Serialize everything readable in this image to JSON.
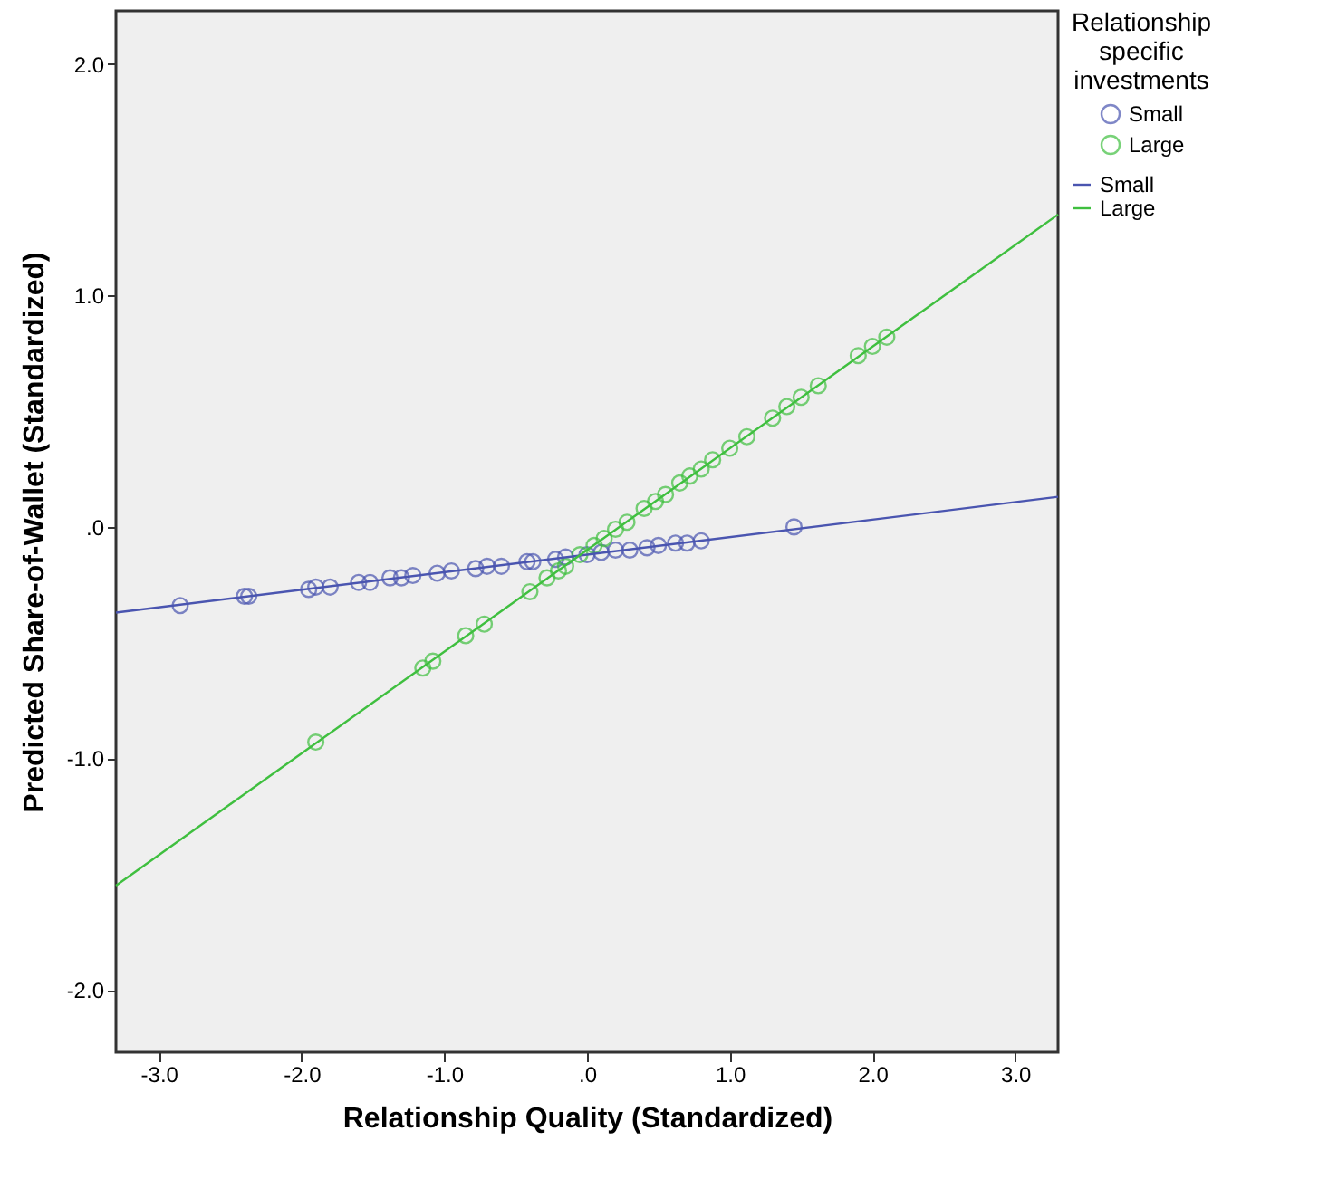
{
  "chart_data": {
    "type": "scatter",
    "xlabel": "Relationship Quality (Standardized)",
    "ylabel": "Predicted Share-of-Wallet (Standardized)",
    "legend_title": "Relationship specific investments",
    "legend": "top right",
    "marker": "circle",
    "grid": false,
    "xlim": [
      -3.3,
      3.3
    ],
    "ylim": [
      -2.27,
      2.23
    ],
    "xticks": [
      {
        "value": -3,
        "label": "-3.0"
      },
      {
        "value": -2,
        "label": "-2.0"
      },
      {
        "value": -1,
        "label": "-1.0"
      },
      {
        "value": 0,
        "label": ".0"
      },
      {
        "value": 1,
        "label": "1.0"
      },
      {
        "value": 2,
        "label": "2.0"
      },
      {
        "value": 3,
        "label": "3.0"
      }
    ],
    "yticks": [
      {
        "value": -2,
        "label": "-2.0"
      },
      {
        "value": -1,
        "label": "-1.0"
      },
      {
        "value": 0,
        "label": ".0"
      },
      {
        "value": 1,
        "label": "1.0"
      },
      {
        "value": 2,
        "label": "2.0"
      }
    ],
    "series": [
      {
        "name": "Small",
        "color": "#4a55b0",
        "x": [
          -2.85,
          -2.4,
          -2.37,
          -1.95,
          -1.9,
          -1.8,
          -1.6,
          -1.52,
          -1.38,
          -1.3,
          -1.22,
          -1.05,
          -0.95,
          -0.78,
          -0.7,
          -0.6,
          -0.42,
          -0.38,
          -0.22,
          -0.15,
          0.0,
          0.1,
          0.2,
          0.3,
          0.42,
          0.5,
          0.62,
          0.7,
          0.8,
          1.45
        ],
        "values": [
          -0.34,
          -0.3,
          -0.3,
          -0.27,
          -0.26,
          -0.26,
          -0.24,
          -0.24,
          -0.22,
          -0.22,
          -0.21,
          -0.2,
          -0.19,
          -0.18,
          -0.17,
          -0.17,
          -0.15,
          -0.15,
          -0.14,
          -0.13,
          -0.12,
          -0.11,
          -0.1,
          -0.1,
          -0.09,
          -0.08,
          -0.07,
          -0.07,
          -0.06,
          0.0
        ]
      },
      {
        "name": "Large",
        "color": "#3fbf3f",
        "x": [
          -1.9,
          -1.15,
          -1.08,
          -0.85,
          -0.72,
          -0.4,
          -0.28,
          -0.2,
          -0.15,
          -0.05,
          0.05,
          0.12,
          0.2,
          0.28,
          0.4,
          0.48,
          0.55,
          0.65,
          0.72,
          0.8,
          0.88,
          1.0,
          1.12,
          1.3,
          1.4,
          1.5,
          1.62,
          1.9,
          2.0,
          2.1
        ],
        "values": [
          -0.93,
          -0.61,
          -0.58,
          -0.47,
          -0.42,
          -0.28,
          -0.22,
          -0.19,
          -0.17,
          -0.12,
          -0.08,
          -0.05,
          -0.01,
          0.02,
          0.08,
          0.11,
          0.14,
          0.19,
          0.22,
          0.25,
          0.29,
          0.34,
          0.39,
          0.47,
          0.52,
          0.56,
          0.61,
          0.74,
          0.78,
          0.82
        ]
      },
      {
        "name": "Small",
        "type": "line",
        "marker": "none",
        "color": "#4a55b0",
        "x": [
          -3.3,
          3.3
        ],
        "values": [
          -0.37,
          0.13
        ]
      },
      {
        "name": "Large",
        "type": "line",
        "marker": "none",
        "color": "#3fbf3f",
        "x": [
          -3.3,
          3.3
        ],
        "values": [
          -1.55,
          1.35
        ]
      }
    ]
  }
}
